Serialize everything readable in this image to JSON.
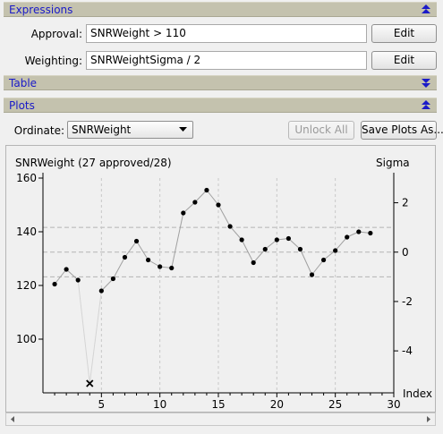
{
  "sections": {
    "expressions": {
      "title": "Expressions"
    },
    "table": {
      "title": "Table"
    },
    "plots": {
      "title": "Plots"
    }
  },
  "expressions": {
    "approval": {
      "label": "Approval:",
      "value": "SNRWeight > 110",
      "edit_label": "Edit"
    },
    "weighting": {
      "label": "Weighting:",
      "value": "SNRWeightSigma / 2",
      "edit_label": "Edit"
    }
  },
  "plots": {
    "ordinate_label": "Ordinate:",
    "ordinate_value": "SNRWeight",
    "unlock_all_label": "Unlock All",
    "save_plots_label": "Save Plots As..."
  },
  "colors": {
    "section_title": "#1a1ac8",
    "section_bar": "#c4c2ae"
  },
  "chart_data": {
    "type": "line",
    "title": "SNRWeight (27 approved/28)",
    "ylabel_right": "Sigma",
    "xlabel": "Index",
    "xlim": [
      0,
      30
    ],
    "ylim": [
      80,
      160
    ],
    "y2lim": [
      -5.7,
      3.0
    ],
    "x_ticks": [
      5,
      10,
      15,
      20,
      25,
      30
    ],
    "y_ticks": [
      100,
      120,
      140,
      160
    ],
    "y2_ticks": [
      -4,
      -2,
      0,
      2
    ],
    "sigma_lines": [
      1,
      0,
      -1
    ],
    "x": [
      1,
      2,
      3,
      4,
      5,
      6,
      7,
      8,
      9,
      10,
      11,
      12,
      13,
      14,
      15,
      16,
      17,
      18,
      19,
      20,
      21,
      22,
      23,
      24,
      25,
      26,
      27,
      28
    ],
    "values": [
      120.5,
      126,
      122,
      83.5,
      118,
      122.5,
      130.5,
      136.5,
      129.5,
      127,
      126.5,
      147,
      151,
      155.5,
      150,
      142,
      137,
      128.5,
      133.5,
      137,
      137.5,
      133.5,
      124,
      129.5,
      133,
      138,
      140,
      139.5
    ],
    "approved": [
      true,
      true,
      true,
      false,
      true,
      true,
      true,
      true,
      true,
      true,
      true,
      true,
      true,
      true,
      true,
      true,
      true,
      true,
      true,
      true,
      true,
      true,
      true,
      true,
      true,
      true,
      true,
      true
    ]
  }
}
